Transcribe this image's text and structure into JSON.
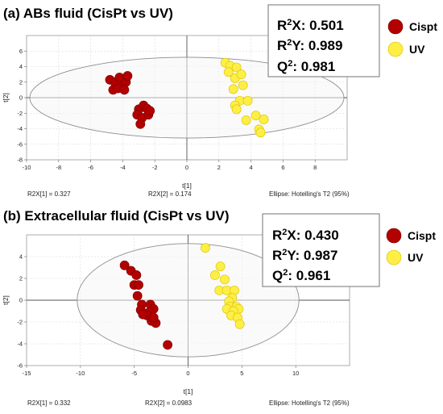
{
  "chart_data": [
    {
      "type": "scatter",
      "title": "(a) ABs fluid (CisPt vs UV)",
      "xlabel": "t[1]",
      "ylabel": "t[2]",
      "xlim": [
        -10,
        10
      ],
      "ylim": [
        -8,
        8
      ],
      "xticks": [
        "-10",
        "-8",
        "-6",
        "-4",
        "-2",
        "0",
        "2",
        "4",
        "6",
        "8"
      ],
      "yticks": [
        "-8",
        "-6",
        "-4",
        "-2",
        "0",
        "2",
        "4",
        "6"
      ],
      "grid": true,
      "ellipse": {
        "cx": 0,
        "cy": 0,
        "rx": 9.8,
        "ry": 5.2
      },
      "stats": [
        {
          "base": "R",
          "sup": "2",
          "rest": "X: 0.501"
        },
        {
          "base": "R",
          "sup": "2",
          "rest": "Y: 0.989"
        },
        {
          "base": "Q",
          "sup": "2",
          "rest": ": 0.981"
        }
      ],
      "legend": [
        {
          "label": "Cispt",
          "color": "#b30000"
        },
        {
          "label": "UV",
          "color": "#ffee44"
        }
      ],
      "legend_position": "top-right",
      "footer": [
        "R2X[1] = 0.327",
        "R2X[2] = 0.174",
        "Ellipse: Hotelling's T2 (95%)"
      ],
      "series": [
        {
          "name": "Cispt",
          "color": "#b30000",
          "points": [
            [
              -4.8,
              2.3
            ],
            [
              -4.5,
              2.0
            ],
            [
              -4.2,
              2.6
            ],
            [
              -4.0,
              1.5
            ],
            [
              -4.6,
              1.0
            ],
            [
              -4.3,
              1.2
            ],
            [
              -3.8,
              2.0
            ],
            [
              -3.7,
              2.8
            ],
            [
              -3.9,
              1.0
            ],
            [
              -3.0,
              -1.5
            ],
            [
              -2.7,
              -1.0
            ],
            [
              -2.5,
              -1.4
            ],
            [
              -3.1,
              -2.2
            ],
            [
              -2.8,
              -2.6
            ],
            [
              -2.4,
              -2.2
            ],
            [
              -2.9,
              -3.4
            ],
            [
              -2.3,
              -1.7
            ]
          ]
        },
        {
          "name": "UV",
          "color": "#ffee44",
          "points": [
            [
              2.4,
              4.5
            ],
            [
              2.7,
              4.1
            ],
            [
              3.1,
              3.9
            ],
            [
              2.6,
              3.3
            ],
            [
              3.0,
              2.5
            ],
            [
              3.4,
              3.0
            ],
            [
              2.9,
              1.1
            ],
            [
              3.5,
              1.6
            ],
            [
              3.3,
              -0.4
            ],
            [
              3.8,
              -0.4
            ],
            [
              3.0,
              -1.0
            ],
            [
              3.1,
              -1.5
            ],
            [
              4.3,
              -2.3
            ],
            [
              3.7,
              -2.9
            ],
            [
              4.8,
              -2.8
            ],
            [
              4.5,
              -4.1
            ],
            [
              4.6,
              -4.5
            ]
          ]
        }
      ]
    },
    {
      "type": "scatter",
      "title": "(b) Extracellular fluid (CisPt vs UV)",
      "xlabel": "t[1]",
      "ylabel": "t[2]",
      "xlim": [
        -15,
        15
      ],
      "ylim": [
        -6,
        6
      ],
      "xticks": [
        "-15",
        "-10",
        "-5",
        "0",
        "5",
        "10"
      ],
      "yticks": [
        "-6",
        "-4",
        "-2",
        "0",
        "2",
        "4"
      ],
      "grid": true,
      "ellipse": {
        "cx": 0,
        "cy": 0,
        "rx": 10.3,
        "ry": 5.2
      },
      "stats": [
        {
          "base": "R",
          "sup": "2",
          "rest": "X: 0.430"
        },
        {
          "base": "R",
          "sup": "2",
          "rest": "Y: 0.987"
        },
        {
          "base": "Q",
          "sup": "2",
          "rest": ": 0.961"
        }
      ],
      "legend": [
        {
          "label": "Cispt",
          "color": "#b30000"
        },
        {
          "label": "UV",
          "color": "#ffee44"
        }
      ],
      "legend_position": "top-right",
      "footer": [
        "R2X[1] = 0.332",
        "R2X[2] = 0.0983",
        "Ellipse: Hotelling's T2 (95%)"
      ],
      "series": [
        {
          "name": "Cispt",
          "color": "#b30000",
          "points": [
            [
              -5.9,
              3.2
            ],
            [
              -5.3,
              2.7
            ],
            [
              -4.8,
              2.3
            ],
            [
              -5.0,
              1.4
            ],
            [
              -4.6,
              1.4
            ],
            [
              -4.7,
              0.4
            ],
            [
              -4.3,
              -0.4
            ],
            [
              -4.4,
              -0.9
            ],
            [
              -3.5,
              -0.4
            ],
            [
              -3.2,
              -0.8
            ],
            [
              -3.6,
              -1.1
            ],
            [
              -3.8,
              -1.4
            ],
            [
              -4.2,
              -1.3
            ],
            [
              -3.4,
              -1.9
            ],
            [
              -3.0,
              -2.1
            ],
            [
              -3.2,
              -1.6
            ],
            [
              -1.9,
              -4.1
            ]
          ]
        },
        {
          "name": "UV",
          "color": "#ffee44",
          "points": [
            [
              1.6,
              4.8
            ],
            [
              2.5,
              2.3
            ],
            [
              3.0,
              3.1
            ],
            [
              3.4,
              1.9
            ],
            [
              2.9,
              0.9
            ],
            [
              3.6,
              0.9
            ],
            [
              4.3,
              0.9
            ],
            [
              4.1,
              0.2
            ],
            [
              3.8,
              -0.1
            ],
            [
              3.9,
              -0.6
            ],
            [
              3.6,
              -0.8
            ],
            [
              4.5,
              -0.6
            ],
            [
              4.7,
              -0.8
            ],
            [
              4.2,
              -1.0
            ],
            [
              4.0,
              -1.4
            ],
            [
              4.6,
              -1.6
            ],
            [
              4.8,
              -2.2
            ]
          ]
        }
      ]
    }
  ]
}
